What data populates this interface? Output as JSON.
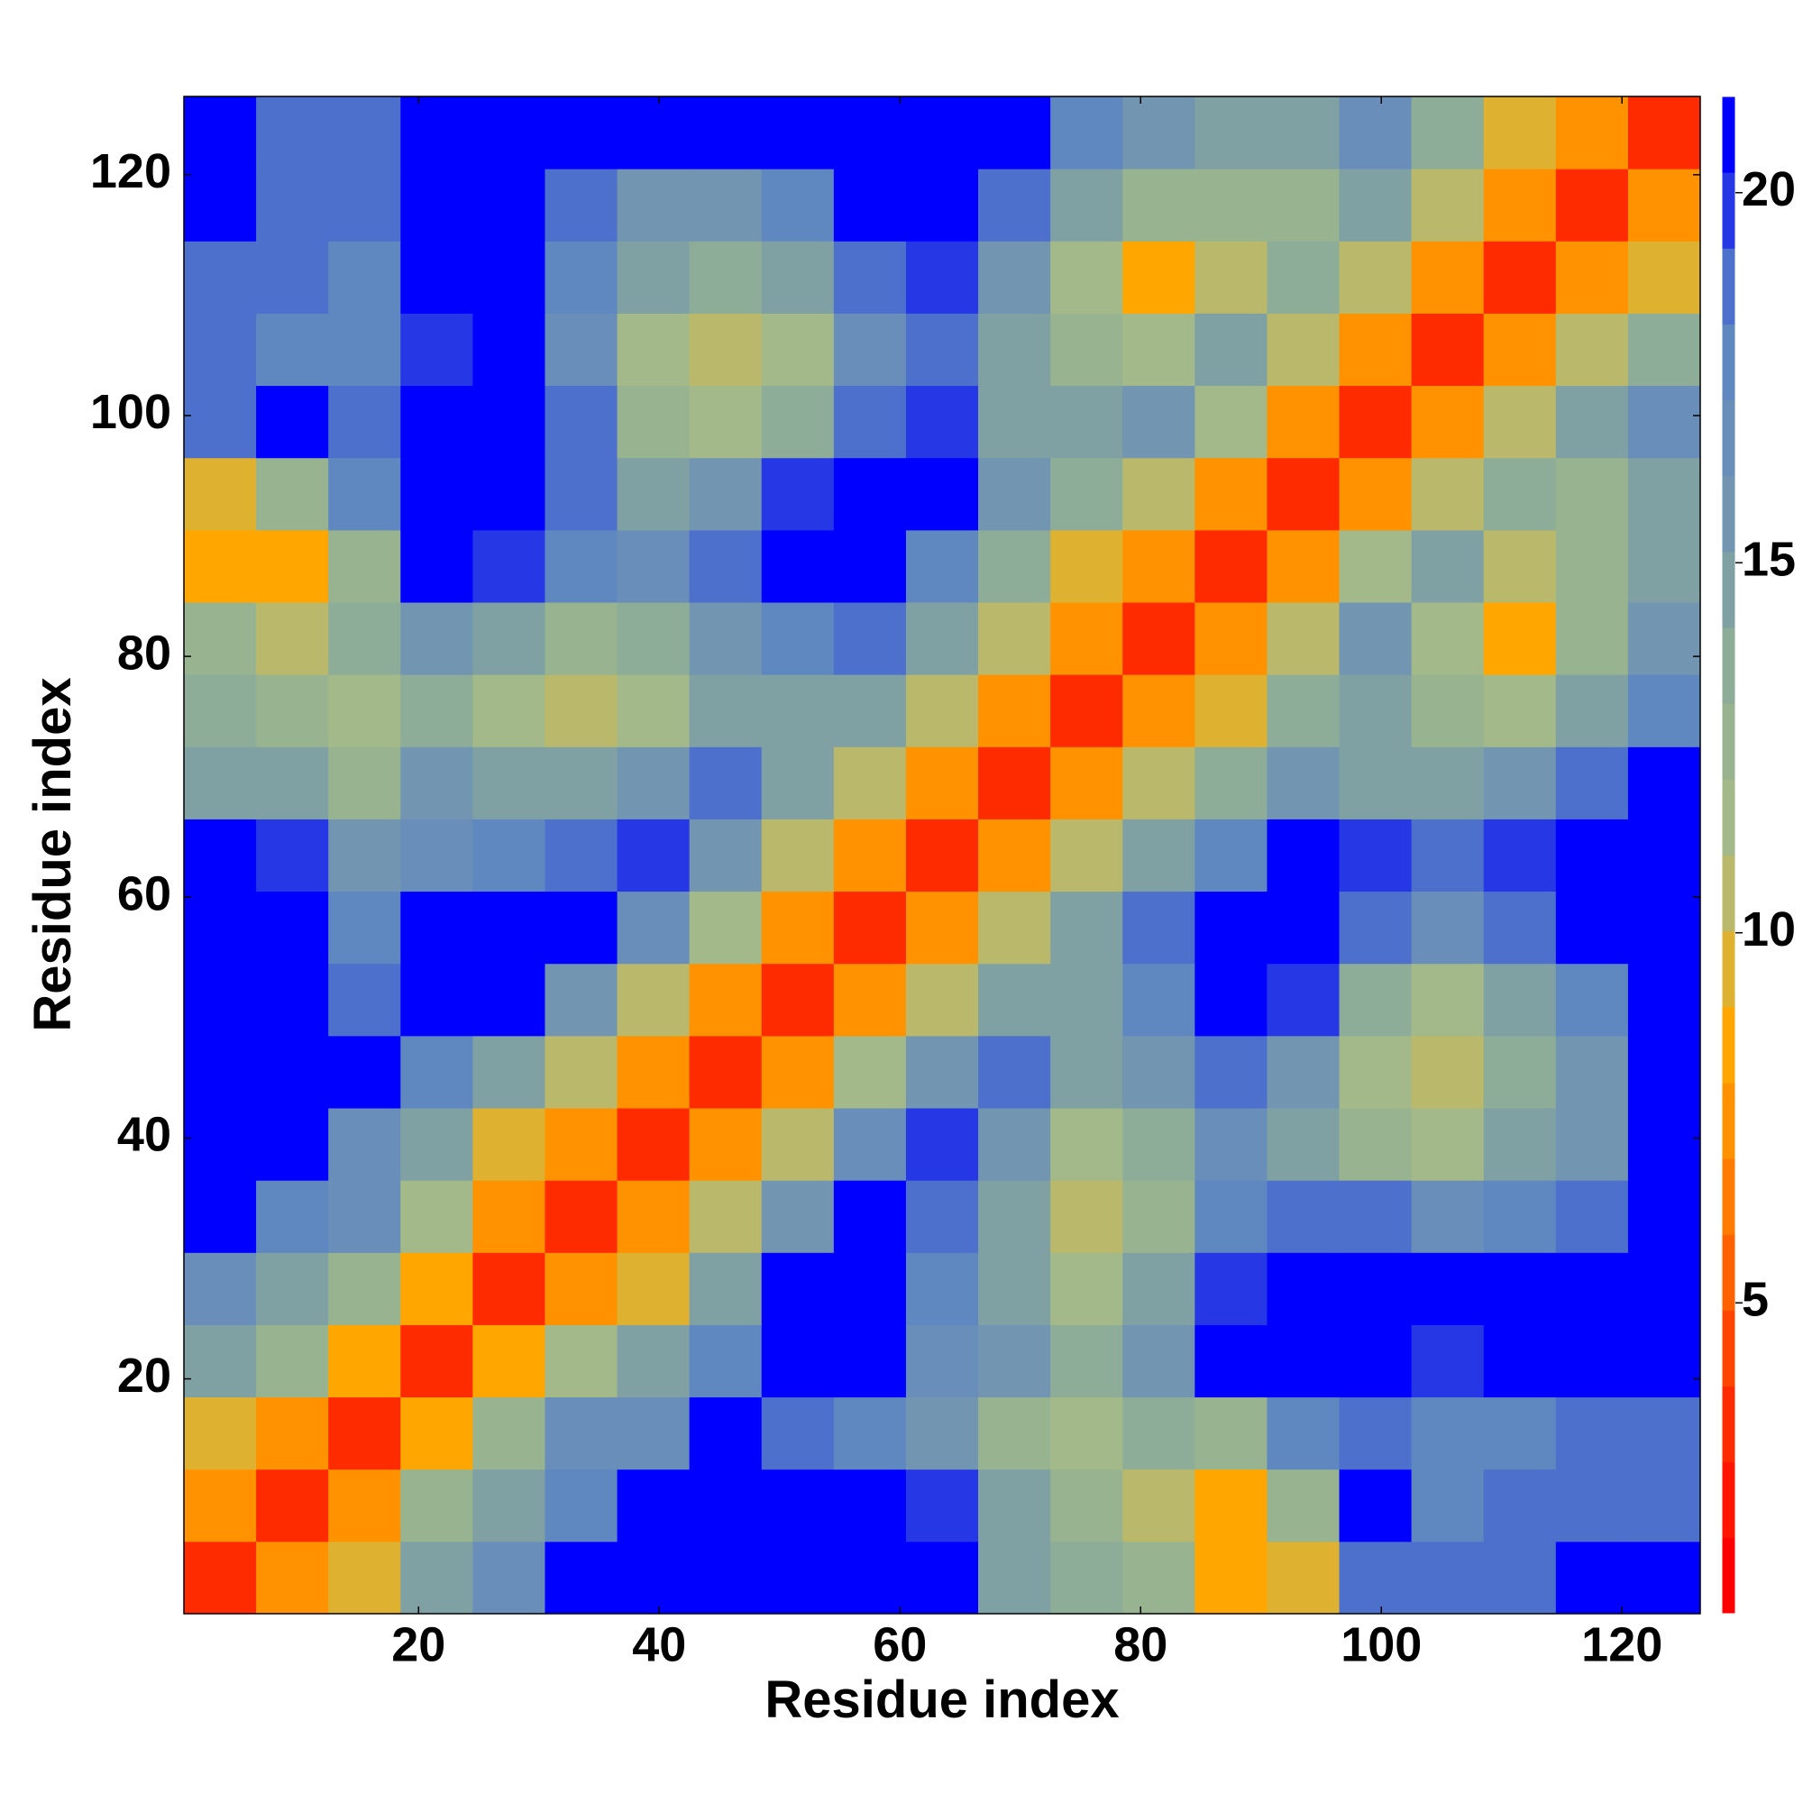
{
  "chart_data": {
    "type": "heatmap",
    "xlabel": "Residue index",
    "ylabel": "Residue index",
    "x_edges": [
      0.5,
      6.5,
      12.5,
      18.5,
      24.5,
      30.5,
      36.5,
      42.5,
      48.5,
      54.5,
      60.5,
      66.5,
      72.5,
      78.5,
      84.5,
      90.5,
      96.5,
      102.5,
      108.5,
      114.5,
      120.5,
      126.5
    ],
    "y_edges": [
      0.5,
      6.5,
      12.5,
      18.5,
      24.5,
      30.5,
      36.5,
      42.5,
      48.5,
      54.5,
      60.5,
      66.5,
      72.5,
      78.5,
      84.5,
      90.5,
      96.5,
      102.5,
      108.5,
      114.5,
      120.5,
      126.5
    ],
    "values": [
      [
        3,
        7,
        10,
        15,
        17,
        21,
        21,
        21,
        21,
        21,
        21,
        15,
        14,
        13,
        8,
        10,
        19,
        19,
        19,
        21,
        21
      ],
      [
        7,
        3,
        7,
        13,
        15,
        18,
        21,
        21,
        21,
        21,
        20,
        15,
        13,
        11,
        8,
        13,
        21,
        18,
        19,
        19,
        19
      ],
      [
        10,
        7,
        3,
        8,
        13,
        17,
        17,
        21,
        19,
        18,
        16,
        13,
        12,
        14,
        13,
        18,
        19,
        18,
        18,
        19,
        19
      ],
      [
        15,
        13,
        8,
        3,
        8,
        12,
        15,
        18,
        21,
        21,
        17,
        16,
        14,
        16,
        21,
        21,
        21,
        20,
        21,
        21,
        21
      ],
      [
        17,
        15,
        13,
        8,
        3,
        7,
        10,
        15,
        21,
        21,
        18,
        15,
        12,
        15,
        20,
        21,
        21,
        21,
        21,
        21,
        21
      ],
      [
        21,
        18,
        17,
        12,
        7,
        3,
        7,
        11,
        16,
        21,
        19,
        15,
        11,
        13,
        18,
        19,
        19,
        17,
        18,
        19,
        21
      ],
      [
        21,
        21,
        17,
        15,
        10,
        7,
        3,
        7,
        11,
        17,
        20,
        16,
        12,
        14,
        17,
        15,
        13,
        12,
        15,
        16,
        21
      ],
      [
        21,
        21,
        21,
        18,
        15,
        11,
        7,
        3,
        7,
        12,
        16,
        19,
        15,
        16,
        19,
        16,
        12,
        11,
        14,
        16,
        21
      ],
      [
        21,
        21,
        19,
        21,
        21,
        16,
        11,
        7,
        3,
        7,
        11,
        15,
        15,
        18,
        21,
        20,
        14,
        12,
        15,
        18,
        21
      ],
      [
        21,
        21,
        18,
        21,
        21,
        21,
        17,
        12,
        7,
        3,
        7,
        11,
        15,
        19,
        21,
        21,
        19,
        17,
        19,
        21,
        21
      ],
      [
        21,
        20,
        16,
        17,
        18,
        19,
        20,
        16,
        11,
        7,
        3,
        7,
        11,
        15,
        18,
        21,
        20,
        19,
        20,
        21,
        21
      ],
      [
        15,
        15,
        13,
        16,
        15,
        15,
        16,
        19,
        15,
        11,
        7,
        3,
        7,
        11,
        14,
        16,
        15,
        15,
        16,
        19,
        21
      ],
      [
        14,
        13,
        12,
        14,
        12,
        11,
        12,
        15,
        15,
        15,
        11,
        7,
        3,
        7,
        10,
        14,
        15,
        13,
        12,
        15,
        18
      ],
      [
        13,
        11,
        14,
        16,
        15,
        13,
        14,
        16,
        18,
        19,
        15,
        11,
        7,
        3,
        7,
        11,
        16,
        12,
        9,
        13,
        16
      ],
      [
        8,
        8,
        13,
        21,
        20,
        18,
        17,
        19,
        21,
        21,
        18,
        14,
        10,
        7,
        3,
        7,
        12,
        15,
        11,
        13,
        15
      ],
      [
        10,
        13,
        18,
        21,
        21,
        19,
        15,
        16,
        20,
        21,
        21,
        16,
        14,
        11,
        7,
        3,
        7,
        11,
        14,
        13,
        15
      ],
      [
        19,
        21,
        19,
        21,
        21,
        19,
        13,
        12,
        14,
        19,
        20,
        15,
        15,
        16,
        12,
        7,
        3,
        7,
        11,
        15,
        17
      ],
      [
        19,
        18,
        18,
        20,
        21,
        17,
        12,
        11,
        12,
        17,
        19,
        15,
        13,
        12,
        15,
        11,
        7,
        3,
        7,
        11,
        14
      ],
      [
        19,
        19,
        18,
        21,
        21,
        18,
        15,
        14,
        15,
        19,
        20,
        16,
        12,
        9,
        11,
        14,
        11,
        7,
        3,
        7,
        10
      ],
      [
        21,
        19,
        19,
        21,
        21,
        19,
        16,
        16,
        18,
        21,
        21,
        19,
        15,
        13,
        13,
        13,
        15,
        11,
        7,
        3,
        7
      ],
      [
        21,
        19,
        19,
        21,
        21,
        21,
        21,
        21,
        21,
        21,
        21,
        21,
        18,
        16,
        15,
        15,
        17,
        14,
        10,
        7,
        3
      ]
    ],
    "xlim": [
      0.5,
      126.5
    ],
    "ylim": [
      0.5,
      126.5
    ],
    "xticks": [
      20,
      40,
      60,
      80,
      100,
      120
    ],
    "yticks": [
      20,
      40,
      60,
      80,
      100,
      120
    ],
    "zlim": [
      0.8,
      21.3
    ],
    "zticks": [
      5,
      10,
      15,
      20
    ],
    "colormap": [
      "#ff0000",
      "#ff3300",
      "#ff7700",
      "#ffaa00",
      "#a8bc86",
      "#8fae96",
      "#6f92b4",
      "#5b85c4",
      "#0000ff"
    ],
    "color_levels": 20
  }
}
